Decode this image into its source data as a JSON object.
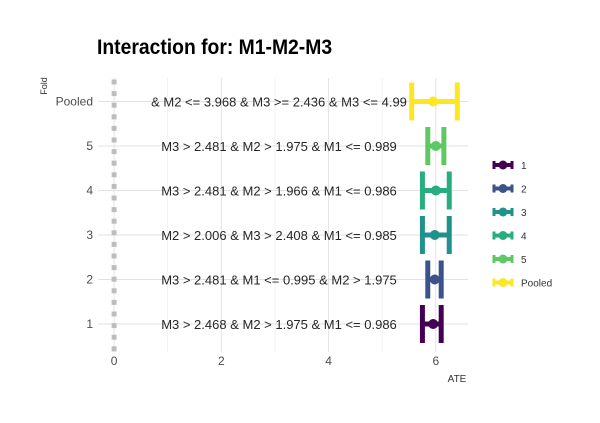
{
  "chart_data": {
    "type": "forest",
    "title": "Interaction for: M1-M2-M3",
    "xlabel": "ATE",
    "ylabel": "Fold",
    "xlim": [
      -0.3,
      6.6
    ],
    "xticks": [
      0,
      2,
      4,
      6
    ],
    "grid": true,
    "legend_position": "right",
    "rows": [
      {
        "fold": "1",
        "label": "M3 > 2.468 & M2 > 1.975 & M1 <= 0.986",
        "estimate": 5.95,
        "lower": 5.75,
        "upper": 6.1,
        "color": "#440154"
      },
      {
        "fold": "2",
        "label": "M3 > 2.481 & M1 <= 0.995 & M2 > 1.975",
        "estimate": 5.98,
        "lower": 5.85,
        "upper": 6.1,
        "color": "#3b528b"
      },
      {
        "fold": "3",
        "label": "M2 > 2.006 & M3 > 2.408 & M1 <= 0.985",
        "estimate": 5.98,
        "lower": 5.75,
        "upper": 6.25,
        "color": "#21918c"
      },
      {
        "fold": "4",
        "label": "M3 > 2.481 & M2 > 1.966 & M1 <= 0.986",
        "estimate": 6.0,
        "lower": 5.75,
        "upper": 6.25,
        "color": "#27ad81"
      },
      {
        "fold": "5",
        "label": "M3 > 2.481 & M2 > 1.975 & M1 <= 0.989",
        "estimate": 6.0,
        "lower": 5.85,
        "upper": 6.15,
        "color": "#5ec962"
      },
      {
        "fold": "Pooled",
        "label": "& M2 <= 3.968 & M3 >= 2.436 & M3 <= 4.99",
        "estimate": 5.95,
        "lower": 5.55,
        "upper": 6.4,
        "color": "#fde725"
      }
    ],
    "legend": [
      {
        "label": "1",
        "color": "#440154"
      },
      {
        "label": "2",
        "color": "#3b528b"
      },
      {
        "label": "3",
        "color": "#21918c"
      },
      {
        "label": "4",
        "color": "#27ad81"
      },
      {
        "label": "5",
        "color": "#5ec962"
      },
      {
        "label": "Pooled",
        "color": "#fde725"
      }
    ],
    "reference_line": 0
  }
}
